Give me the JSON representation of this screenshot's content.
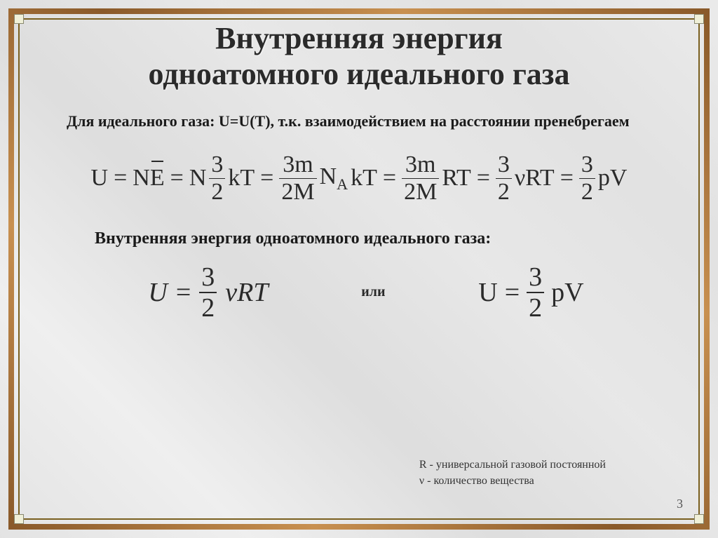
{
  "title_line1": "Внутренняя энергия",
  "title_line2": "одноатомного идеального газа",
  "intro": "Для идеального газа: U=U(T), т.к. взаимодействием на расстоянии пренебрегаем",
  "eq_chain": {
    "lhs": "U",
    "t1_a": "N",
    "t1_b": "E",
    "t2_pre": "N",
    "t2_num": "3",
    "t2_den": "2",
    "t2_post": "kT",
    "t3_num": "3m",
    "t3_den": "2M",
    "t3_mid": "N",
    "t3_sub": "A",
    "t3_post": "kT",
    "t4_num": "3m",
    "t4_den": "2M",
    "t4_post": "RT",
    "t5_num": "3",
    "t5_den": "2",
    "t5_pre": "ν",
    "t5_post": "RT",
    "t6_num": "3",
    "t6_den": "2",
    "t6_post": "pV"
  },
  "sub2": "Внутренняя энергия одноатомного идеального газа:",
  "eq_left": {
    "U": "U",
    "num": "3",
    "den": "2",
    "nu": "ν",
    "rt": "RT"
  },
  "or": "или",
  "eq_right": {
    "U": "U",
    "num": "3",
    "den": "2",
    "pv": "pV"
  },
  "footnote_r": "R - универсальной газовой постоянной",
  "footnote_nu": "ν - количество вещества",
  "page": "3",
  "colors": {
    "text": "#2a2a2a",
    "frame_dark": "#8a5a2a",
    "frame_light": "#c89050",
    "inner_frame": "#7a6020",
    "bg": "#e8e8e8"
  }
}
